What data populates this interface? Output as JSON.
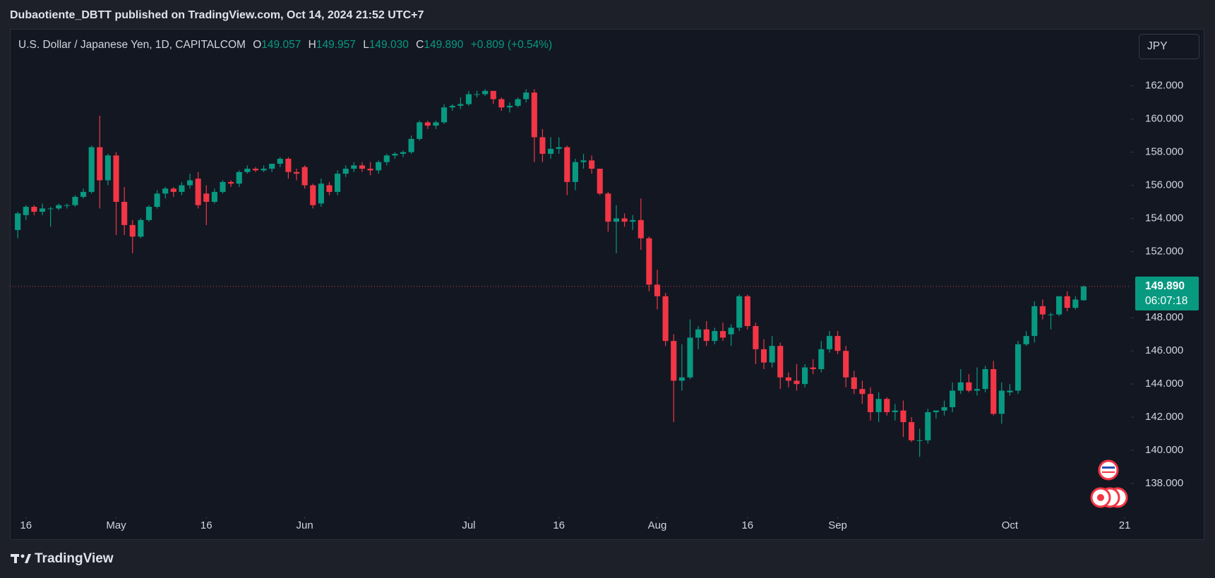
{
  "page": {
    "published": "Dubaotiente_DBTT published on TradingView.com, Oct 14, 2024 21:52 UTC+7",
    "brand": "TradingView",
    "currency_button": "JPY"
  },
  "chart_data": {
    "type": "candlestick",
    "title": "U.S. Dollar / Japanese Yen, 1D, CAPITALCOM",
    "header": {
      "open_label": "O",
      "open": "149.057",
      "high_label": "H",
      "high": "149.957",
      "low_label": "L",
      "low": "149.030",
      "close_label": "C",
      "close": "149.890",
      "change": "+0.809 (+0.54%)"
    },
    "up_color": "#089981",
    "down_color": "#f23645",
    "last_price": {
      "value": 149.89,
      "label": "149.890"
    },
    "countdown": "06:07:18",
    "xlim": [
      -0.96,
      135.6
    ],
    "xticks": [
      {
        "value": 1,
        "label": "16"
      },
      {
        "value": 12,
        "label": "May"
      },
      {
        "value": 23,
        "label": "16"
      },
      {
        "value": 35,
        "label": "Jun"
      },
      {
        "value": 55,
        "label": "Jul"
      },
      {
        "value": 66,
        "label": "16"
      },
      {
        "value": 78,
        "label": "Aug"
      },
      {
        "value": 89,
        "label": "16"
      },
      {
        "value": 100,
        "label": "Sep"
      },
      {
        "value": 121,
        "label": "Oct"
      },
      {
        "value": 135,
        "label": "21"
      }
    ],
    "ylim": [
      136.08,
      165.44
    ],
    "yticks": [
      {
        "value": 138,
        "label": "138.000"
      },
      {
        "value": 140,
        "label": "140.000"
      },
      {
        "value": 142,
        "label": "142.000"
      },
      {
        "value": 144,
        "label": "144.000"
      },
      {
        "value": 146,
        "label": "146.000"
      },
      {
        "value": 148,
        "label": "148.000"
      },
      {
        "value": 152,
        "label": "152.000"
      },
      {
        "value": 154,
        "label": "154.000"
      },
      {
        "value": 156,
        "label": "156.000"
      },
      {
        "value": 158,
        "label": "158.000"
      },
      {
        "value": 160,
        "label": "160.000"
      },
      {
        "value": 162,
        "label": "162.000"
      }
    ],
    "grid": false,
    "candles": [
      [
        153.3,
        154.4,
        152.8,
        154.3
      ],
      [
        154.2,
        154.8,
        153.9,
        154.7
      ],
      [
        154.7,
        154.8,
        154.2,
        154.4
      ],
      [
        154.4,
        154.9,
        154.2,
        154.6
      ],
      [
        154.6,
        154.7,
        153.5,
        154.6
      ],
      [
        154.6,
        154.9,
        154.5,
        154.8
      ],
      [
        154.8,
        154.9,
        154.6,
        154.8
      ],
      [
        154.8,
        155.4,
        154.7,
        155.3
      ],
      [
        155.3,
        155.8,
        155.2,
        155.6
      ],
      [
        155.6,
        158.4,
        155.5,
        158.3
      ],
      [
        158.3,
        160.2,
        154.6,
        156.3
      ],
      [
        156.3,
        157.9,
        156.0,
        157.8
      ],
      [
        157.8,
        158.0,
        153.0,
        155.0
      ],
      [
        155.0,
        155.9,
        153.0,
        153.6
      ],
      [
        153.6,
        153.9,
        151.9,
        152.9
      ],
      [
        152.9,
        154.0,
        152.8,
        153.9
      ],
      [
        153.9,
        154.8,
        153.8,
        154.7
      ],
      [
        154.7,
        155.7,
        154.6,
        155.5
      ],
      [
        155.5,
        155.9,
        155.2,
        155.8
      ],
      [
        155.8,
        155.9,
        155.3,
        155.6
      ],
      [
        155.6,
        156.2,
        155.4,
        156.0
      ],
      [
        156.0,
        156.7,
        155.8,
        156.3
      ],
      [
        156.4,
        156.8,
        154.6,
        154.8
      ],
      [
        155.5,
        156.0,
        153.6,
        155.0
      ],
      [
        155.0,
        155.8,
        154.9,
        155.6
      ],
      [
        155.6,
        156.3,
        155.5,
        156.2
      ],
      [
        156.2,
        156.3,
        155.9,
        156.1
      ],
      [
        156.1,
        156.9,
        155.9,
        156.8
      ],
      [
        156.8,
        157.2,
        156.7,
        157.0
      ],
      [
        157.0,
        157.1,
        156.8,
        156.9
      ],
      [
        156.9,
        157.2,
        156.8,
        157.0
      ],
      [
        157.0,
        157.3,
        156.8,
        157.3
      ],
      [
        157.3,
        157.7,
        157.1,
        157.6
      ],
      [
        157.6,
        157.7,
        156.4,
        156.8
      ],
      [
        156.8,
        157.0,
        156.3,
        156.7
      ],
      [
        157.1,
        157.2,
        155.8,
        156.0
      ],
      [
        156.0,
        156.1,
        154.6,
        154.8
      ],
      [
        154.9,
        156.4,
        154.7,
        156.1
      ],
      [
        156.0,
        156.2,
        155.4,
        155.6
      ],
      [
        155.6,
        156.9,
        155.4,
        156.7
      ],
      [
        156.7,
        157.2,
        156.5,
        157.0
      ],
      [
        157.0,
        157.4,
        156.8,
        157.2
      ],
      [
        157.2,
        157.4,
        156.8,
        157.0
      ],
      [
        157.0,
        157.4,
        156.6,
        156.9
      ],
      [
        156.9,
        157.5,
        156.7,
        157.4
      ],
      [
        157.4,
        157.9,
        157.2,
        157.8
      ],
      [
        157.8,
        158.0,
        157.6,
        157.9
      ],
      [
        157.9,
        158.1,
        157.7,
        158.0
      ],
      [
        158.0,
        159.0,
        157.9,
        158.8
      ],
      [
        158.8,
        159.9,
        158.7,
        159.8
      ],
      [
        159.8,
        159.9,
        159.4,
        159.6
      ],
      [
        159.6,
        159.9,
        159.4,
        159.8
      ],
      [
        159.8,
        160.9,
        159.7,
        160.7
      ],
      [
        160.7,
        160.9,
        160.5,
        160.8
      ],
      [
        160.8,
        161.3,
        160.6,
        160.9
      ],
      [
        160.9,
        161.7,
        160.8,
        161.5
      ],
      [
        161.5,
        161.7,
        161.3,
        161.5
      ],
      [
        161.5,
        161.8,
        161.4,
        161.7
      ],
      [
        161.7,
        161.7,
        160.9,
        161.2
      ],
      [
        161.2,
        161.3,
        160.5,
        160.7
      ],
      [
        160.7,
        161.0,
        160.4,
        160.8
      ],
      [
        160.8,
        161.3,
        160.7,
        161.2
      ],
      [
        161.2,
        161.8,
        161.0,
        161.6
      ],
      [
        161.6,
        161.8,
        157.4,
        158.9
      ],
      [
        158.9,
        159.4,
        157.4,
        157.9
      ],
      [
        157.9,
        158.9,
        157.6,
        158.2
      ],
      [
        158.2,
        158.9,
        157.9,
        158.3
      ],
      [
        158.3,
        158.4,
        155.4,
        156.2
      ],
      [
        156.2,
        157.6,
        155.7,
        157.4
      ],
      [
        157.4,
        157.9,
        157.0,
        157.5
      ],
      [
        157.5,
        157.8,
        156.7,
        157.0
      ],
      [
        157.0,
        157.0,
        155.4,
        155.5
      ],
      [
        155.5,
        155.6,
        153.2,
        153.8
      ],
      [
        153.8,
        154.8,
        151.9,
        154.0
      ],
      [
        154.0,
        154.3,
        153.5,
        153.8
      ],
      [
        153.8,
        154.2,
        153.3,
        153.9
      ],
      [
        153.9,
        155.2,
        152.1,
        152.8
      ],
      [
        152.8,
        152.9,
        149.6,
        150.0
      ],
      [
        150.0,
        150.9,
        148.5,
        149.3
      ],
      [
        149.3,
        149.5,
        146.3,
        146.6
      ],
      [
        146.6,
        147.0,
        141.7,
        144.2
      ],
      [
        144.2,
        146.4,
        143.6,
        144.4
      ],
      [
        144.4,
        147.9,
        144.3,
        146.8
      ],
      [
        146.8,
        147.5,
        146.1,
        147.3
      ],
      [
        147.3,
        147.8,
        146.3,
        146.6
      ],
      [
        146.6,
        147.4,
        146.4,
        147.2
      ],
      [
        147.2,
        147.7,
        146.6,
        146.8
      ],
      [
        147.0,
        147.6,
        146.3,
        147.4
      ],
      [
        147.4,
        149.4,
        147.2,
        149.3
      ],
      [
        149.3,
        149.4,
        147.3,
        147.5
      ],
      [
        147.5,
        147.7,
        145.2,
        146.1
      ],
      [
        146.1,
        146.7,
        144.9,
        145.3
      ],
      [
        145.3,
        146.9,
        145.0,
        146.3
      ],
      [
        146.3,
        146.5,
        143.7,
        144.4
      ],
      [
        144.4,
        144.7,
        143.8,
        144.2
      ],
      [
        144.2,
        145.2,
        143.6,
        144.0
      ],
      [
        144.0,
        145.2,
        143.8,
        145.0
      ],
      [
        145.0,
        145.5,
        144.6,
        144.9
      ],
      [
        144.9,
        146.6,
        144.7,
        146.1
      ],
      [
        146.1,
        147.2,
        145.9,
        146.9
      ],
      [
        146.9,
        147.2,
        145.8,
        146.0
      ],
      [
        146.0,
        146.3,
        143.8,
        144.4
      ],
      [
        144.4,
        144.8,
        143.4,
        143.7
      ],
      [
        143.7,
        144.2,
        142.8,
        143.4
      ],
      [
        143.4,
        143.8,
        141.8,
        142.3
      ],
      [
        142.3,
        143.5,
        141.7,
        143.1
      ],
      [
        143.1,
        143.2,
        142.1,
        142.3
      ],
      [
        142.3,
        142.8,
        141.8,
        142.4
      ],
      [
        142.4,
        143.0,
        140.8,
        141.7
      ],
      [
        141.7,
        142.0,
        140.5,
        140.6
      ],
      [
        140.6,
        141.3,
        139.6,
        140.6
      ],
      [
        140.6,
        142.5,
        140.4,
        142.3
      ],
      [
        142.3,
        142.4,
        141.9,
        142.4
      ],
      [
        142.4,
        143.0,
        142.1,
        142.6
      ],
      [
        142.6,
        144.1,
        142.3,
        143.6
      ],
      [
        143.6,
        144.9,
        143.4,
        144.1
      ],
      [
        144.1,
        144.6,
        143.5,
        143.6
      ],
      [
        143.6,
        145.0,
        143.3,
        143.7
      ],
      [
        143.7,
        145.1,
        143.5,
        144.9
      ],
      [
        144.9,
        145.4,
        142.1,
        142.2
      ],
      [
        142.2,
        144.1,
        141.6,
        143.6
      ],
      [
        143.5,
        144.0,
        143.3,
        143.6
      ],
      [
        143.6,
        146.6,
        143.4,
        146.4
      ],
      [
        146.4,
        147.2,
        146.3,
        146.9
      ],
      [
        146.9,
        149.0,
        146.5,
        148.7
      ],
      [
        148.7,
        149.1,
        147.9,
        148.2
      ],
      [
        148.2,
        148.3,
        147.3,
        148.2
      ],
      [
        148.2,
        149.3,
        148.1,
        149.3
      ],
      [
        149.3,
        149.6,
        148.4,
        148.6
      ],
      [
        148.6,
        149.3,
        148.5,
        149.1
      ],
      [
        149.057,
        149.957,
        149.03,
        149.89
      ]
    ]
  }
}
